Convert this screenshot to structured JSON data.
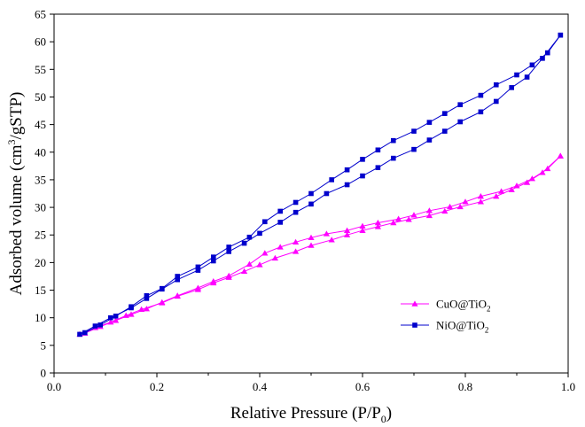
{
  "chart_data": {
    "type": "line",
    "xlabel": "Relative Pressure (P/P0)",
    "xlabel_parts": {
      "main": "Relative Pressure (P/P",
      "sub": "0",
      "end": ")"
    },
    "ylabel": "Adsorbed volume (cm3/gSTP)",
    "ylabel_parts": {
      "main": "Adsorbed volume (cm",
      "sup": "3",
      "end": "/gSTP)"
    },
    "xlim": [
      0.0,
      1.0
    ],
    "ylim": [
      0,
      65
    ],
    "xticks": [
      "0.0",
      "0.2",
      "0.4",
      "0.6",
      "0.8",
      "1.0"
    ],
    "xtick_values": [
      0.0,
      0.2,
      0.4,
      0.6,
      0.8,
      1.0
    ],
    "yticks": [
      "0",
      "5",
      "10",
      "15",
      "20",
      "25",
      "30",
      "35",
      "40",
      "45",
      "50",
      "55",
      "60",
      "65"
    ],
    "ytick_values": [
      0,
      5,
      10,
      15,
      20,
      25,
      30,
      35,
      40,
      45,
      50,
      55,
      60,
      65
    ],
    "grid": false,
    "legend_position": "bottom-right",
    "series": [
      {
        "name": "CuO@TiO2",
        "legend_main": "CuO@TiO",
        "legend_sub": "2",
        "color": "#ff00ff",
        "marker": "triangle",
        "adsorption": {
          "x": [
            0.05,
            0.08,
            0.11,
            0.14,
            0.17,
            0.21,
            0.24,
            0.28,
            0.31,
            0.34,
            0.37,
            0.4,
            0.43,
            0.47,
            0.5,
            0.54,
            0.57,
            0.6,
            0.63,
            0.66,
            0.69,
            0.73,
            0.76,
            0.79,
            0.83,
            0.86,
            0.89,
            0.92,
            0.95,
            0.985
          ],
          "y": [
            7.0,
            8.2,
            9.2,
            10.4,
            11.5,
            12.7,
            13.9,
            15.1,
            16.3,
            17.3,
            18.4,
            19.6,
            20.8,
            22.0,
            23.1,
            24.1,
            25.0,
            25.8,
            26.5,
            27.2,
            27.8,
            28.5,
            29.3,
            30.1,
            31.0,
            32.0,
            33.2,
            34.5,
            36.3,
            39.3
          ]
        },
        "desorption": {
          "x": [
            0.985,
            0.96,
            0.93,
            0.9,
            0.87,
            0.83,
            0.8,
            0.77,
            0.73,
            0.7,
            0.67,
            0.63,
            0.6,
            0.57,
            0.53,
            0.5,
            0.47,
            0.44,
            0.41,
            0.38,
            0.34,
            0.31,
            0.28,
            0.24,
            0.21,
            0.18,
            0.15,
            0.12,
            0.09,
            0.06
          ],
          "y": [
            39.3,
            37.0,
            35.2,
            33.9,
            32.9,
            32.0,
            31.0,
            30.1,
            29.4,
            28.6,
            27.9,
            27.2,
            26.6,
            25.8,
            25.2,
            24.5,
            23.7,
            22.8,
            21.7,
            19.7,
            17.6,
            16.6,
            15.4,
            14.0,
            12.8,
            11.6,
            10.6,
            9.5,
            8.4,
            7.2
          ]
        }
      },
      {
        "name": "NiO@TiO2",
        "legend_main": "NiO@TiO",
        "legend_sub": "2",
        "color": "#0000cc",
        "marker": "square",
        "adsorption": {
          "x": [
            0.05,
            0.08,
            0.11,
            0.15,
            0.18,
            0.21,
            0.24,
            0.28,
            0.31,
            0.34,
            0.37,
            0.4,
            0.44,
            0.47,
            0.5,
            0.53,
            0.57,
            0.6,
            0.63,
            0.66,
            0.7,
            0.73,
            0.76,
            0.79,
            0.83,
            0.86,
            0.89,
            0.92,
            0.95,
            0.985
          ],
          "y": [
            7.0,
            8.5,
            10.0,
            11.8,
            13.5,
            15.2,
            16.9,
            18.6,
            20.3,
            22.0,
            23.5,
            25.3,
            27.3,
            29.1,
            30.6,
            32.5,
            34.1,
            35.7,
            37.2,
            38.9,
            40.5,
            42.2,
            43.8,
            45.5,
            47.3,
            49.2,
            51.7,
            53.6,
            57.0,
            61.2
          ]
        },
        "desorption": {
          "x": [
            0.985,
            0.96,
            0.93,
            0.9,
            0.86,
            0.83,
            0.79,
            0.76,
            0.73,
            0.7,
            0.66,
            0.63,
            0.6,
            0.57,
            0.54,
            0.5,
            0.47,
            0.44,
            0.41,
            0.38,
            0.34,
            0.31,
            0.28,
            0.24,
            0.21,
            0.18,
            0.15,
            0.12,
            0.09,
            0.06
          ],
          "y": [
            61.2,
            58.0,
            55.8,
            54.0,
            52.2,
            50.3,
            48.6,
            47.0,
            45.4,
            43.8,
            42.1,
            40.4,
            38.7,
            36.8,
            35.0,
            32.5,
            30.9,
            29.3,
            27.4,
            24.6,
            22.8,
            21.0,
            19.2,
            17.5,
            15.3,
            14.0,
            12.0,
            10.3,
            8.7,
            7.3
          ]
        }
      }
    ]
  }
}
